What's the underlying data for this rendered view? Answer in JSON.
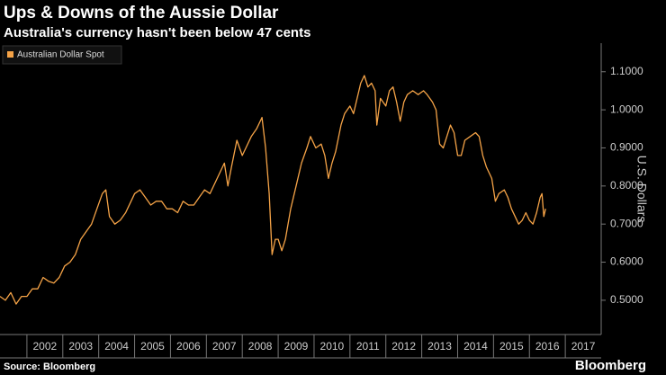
{
  "chart_data": {
    "type": "line",
    "title": "Ups & Downs of the Aussie Dollar",
    "subtitle": "Australia's currency hasn't been below 47 cents",
    "y_label": "U.S. Dollars",
    "source": "Source: Bloomberg",
    "brand": "Bloomberg",
    "legend": "top-left",
    "x": [
      2001.25,
      2001.4,
      2001.55,
      2001.7,
      2001.85,
      2002.0,
      2002.15,
      2002.3,
      2002.45,
      2002.6,
      2002.75,
      2002.9,
      2003.05,
      2003.2,
      2003.35,
      2003.5,
      2003.65,
      2003.8,
      2003.95,
      2004.1,
      2004.2,
      2004.3,
      2004.45,
      2004.6,
      2004.75,
      2004.9,
      2005.0,
      2005.15,
      2005.3,
      2005.45,
      2005.6,
      2005.75,
      2005.9,
      2006.05,
      2006.2,
      2006.35,
      2006.5,
      2006.65,
      2006.8,
      2006.95,
      2007.1,
      2007.25,
      2007.4,
      2007.5,
      2007.6,
      2007.7,
      2007.85,
      2008.0,
      2008.1,
      2008.25,
      2008.4,
      2008.55,
      2008.65,
      2008.75,
      2008.83,
      2008.92,
      2009.0,
      2009.1,
      2009.2,
      2009.35,
      2009.5,
      2009.65,
      2009.8,
      2009.9,
      2010.05,
      2010.2,
      2010.3,
      2010.4,
      2010.5,
      2010.6,
      2010.75,
      2010.85,
      2011.0,
      2011.1,
      2011.2,
      2011.3,
      2011.4,
      2011.5,
      2011.6,
      2011.7,
      2011.75,
      2011.85,
      2012.0,
      2012.1,
      2012.2,
      2012.3,
      2012.4,
      2012.5,
      2012.6,
      2012.75,
      2012.9,
      2013.05,
      2013.15,
      2013.3,
      2013.4,
      2013.5,
      2013.6,
      2013.7,
      2013.8,
      2013.9,
      2014.0,
      2014.1,
      2014.2,
      2014.35,
      2014.5,
      2014.6,
      2014.7,
      2014.8,
      2014.95,
      2015.05,
      2015.15,
      2015.3,
      2015.4,
      2015.5,
      2015.6,
      2015.7,
      2015.8,
      2015.9,
      2016.0,
      2016.1,
      2016.2,
      2016.3,
      2016.35,
      2016.4,
      2016.45
    ],
    "series": [
      {
        "name": "Australian Dollar Spot",
        "color": "#f5a347",
        "values": [
          0.51,
          0.5,
          0.52,
          0.49,
          0.51,
          0.51,
          0.53,
          0.53,
          0.56,
          0.55,
          0.545,
          0.56,
          0.59,
          0.6,
          0.62,
          0.66,
          0.68,
          0.7,
          0.74,
          0.78,
          0.79,
          0.72,
          0.7,
          0.71,
          0.73,
          0.76,
          0.78,
          0.79,
          0.77,
          0.75,
          0.76,
          0.76,
          0.74,
          0.74,
          0.73,
          0.76,
          0.75,
          0.75,
          0.77,
          0.79,
          0.78,
          0.81,
          0.84,
          0.86,
          0.8,
          0.85,
          0.92,
          0.88,
          0.9,
          0.93,
          0.95,
          0.98,
          0.9,
          0.78,
          0.62,
          0.66,
          0.66,
          0.63,
          0.66,
          0.74,
          0.8,
          0.86,
          0.9,
          0.93,
          0.9,
          0.91,
          0.88,
          0.82,
          0.86,
          0.89,
          0.96,
          0.99,
          1.01,
          0.99,
          1.03,
          1.07,
          1.09,
          1.06,
          1.07,
          1.05,
          0.96,
          1.03,
          1.01,
          1.05,
          1.06,
          1.02,
          0.97,
          1.02,
          1.04,
          1.05,
          1.04,
          1.05,
          1.04,
          1.02,
          1.0,
          0.91,
          0.9,
          0.93,
          0.96,
          0.94,
          0.88,
          0.88,
          0.92,
          0.93,
          0.94,
          0.93,
          0.88,
          0.85,
          0.82,
          0.76,
          0.78,
          0.79,
          0.77,
          0.74,
          0.72,
          0.7,
          0.71,
          0.73,
          0.71,
          0.7,
          0.73,
          0.77,
          0.78,
          0.72,
          0.74
        ]
      }
    ],
    "xlim": [
      2001.25,
      2018.0
    ],
    "xticks": [
      2002,
      2003,
      2004,
      2005,
      2006,
      2007,
      2008,
      2009,
      2010,
      2011,
      2012,
      2013,
      2014,
      2015,
      2016,
      2017
    ],
    "ylim": [
      0.41,
      1.175
    ],
    "yticks": [
      {
        "value": 0.5,
        "label": "0.5000"
      },
      {
        "value": 0.6,
        "label": "0.6000"
      },
      {
        "value": 0.7,
        "label": "0.7000"
      },
      {
        "value": 0.8,
        "label": "0.8000"
      },
      {
        "value": 0.9,
        "label": "0.9000"
      },
      {
        "value": 1.0,
        "label": "1.0000"
      },
      {
        "value": 1.1,
        "label": "1.1000"
      }
    ]
  }
}
